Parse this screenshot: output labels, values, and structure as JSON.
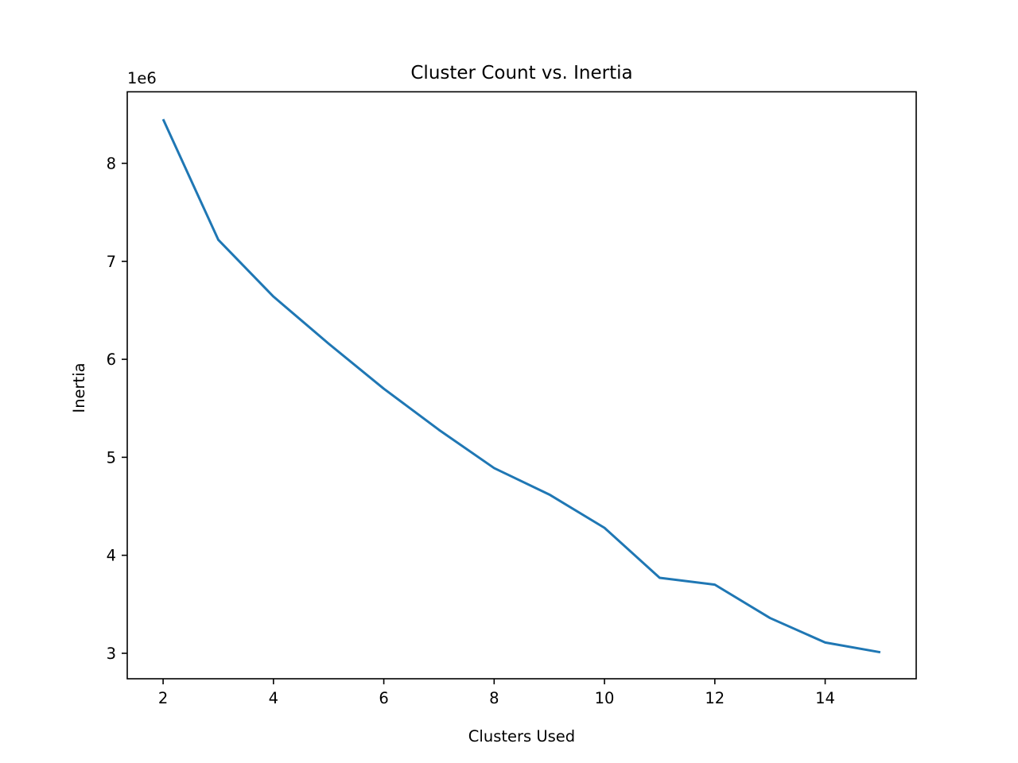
{
  "chart_data": {
    "type": "line",
    "title": "Cluster Count vs. Inertia",
    "xlabel": "Clusters Used",
    "ylabel": "Inertia",
    "y_offset_label": "1e6",
    "xlim": [
      1.35,
      15.65
    ],
    "ylim": [
      2.74,
      8.73
    ],
    "x_ticks": [
      2,
      4,
      6,
      8,
      10,
      12,
      14
    ],
    "y_ticks": [
      3,
      4,
      5,
      6,
      7,
      8
    ],
    "grid": false,
    "series": [
      {
        "color": "#1f77b4",
        "x": [
          2,
          3,
          4,
          5,
          6,
          7,
          8,
          9,
          10,
          11,
          12,
          13,
          14,
          15
        ],
        "y": [
          8.45,
          7.22,
          6.64,
          6.16,
          5.7,
          5.28,
          4.89,
          4.62,
          4.28,
          3.77,
          3.7,
          3.36,
          3.11,
          3.01
        ]
      }
    ]
  }
}
